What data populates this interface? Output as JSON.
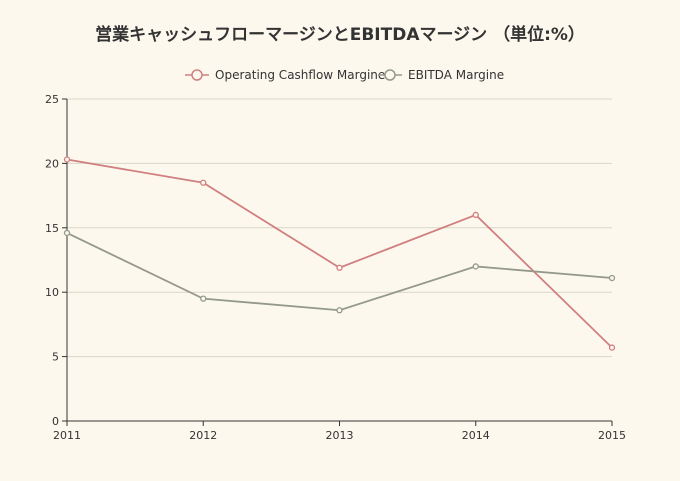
{
  "chart_data": {
    "type": "line",
    "title": "営業キャッシュフローマージンとEBITDAマージン （単位:%）",
    "xlabel": "",
    "ylabel": "",
    "x": [
      "2011",
      "2012",
      "2013",
      "2014",
      "2015"
    ],
    "ylim": [
      0,
      25
    ],
    "yticks": [
      0,
      5,
      10,
      15,
      20,
      25
    ],
    "grid": true,
    "legend_position": "top",
    "series": [
      {
        "name": "Operating Cashflow Margine",
        "color": "#d08080",
        "values": [
          20.3,
          18.5,
          11.9,
          16.0,
          5.7
        ]
      },
      {
        "name": "EBITDA Margine",
        "color": "#94998c",
        "values": [
          14.6,
          9.5,
          8.6,
          12.0,
          11.1
        ]
      }
    ]
  }
}
